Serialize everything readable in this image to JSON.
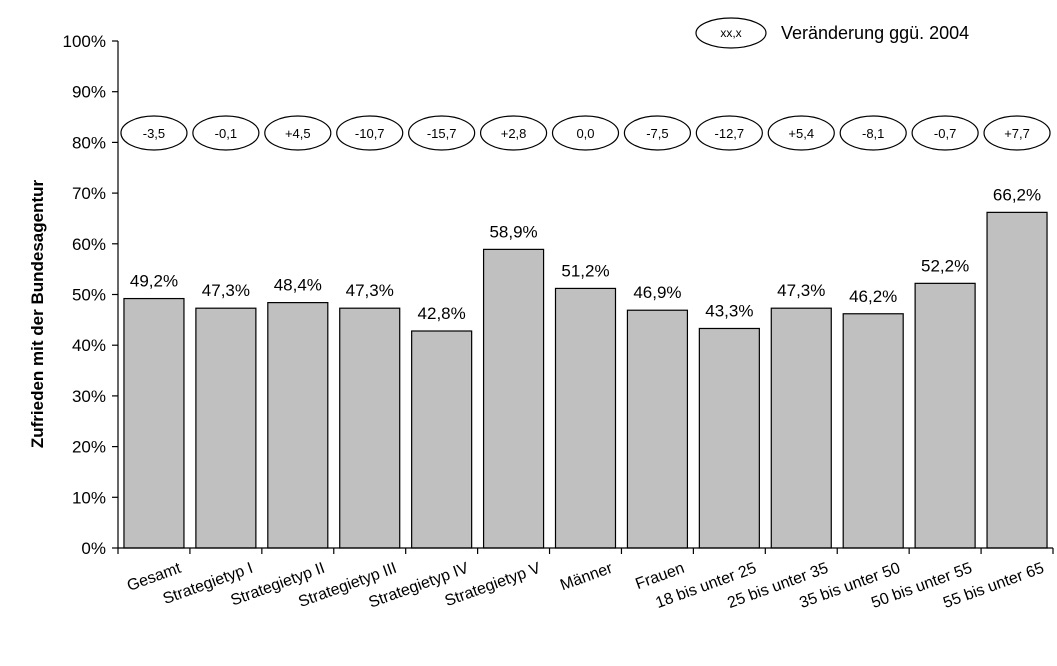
{
  "chart_data": {
    "type": "bar",
    "ylabel": "Zufrieden mit der Bundesagentur",
    "xlabel": "",
    "ylim": [
      0,
      100
    ],
    "y_ticks": [
      "0%",
      "10%",
      "20%",
      "30%",
      "40%",
      "50%",
      "60%",
      "70%",
      "80%",
      "90%",
      "100%"
    ],
    "categories": [
      "Gesamt",
      "Strategietyp I",
      "Strategietyp II",
      "Strategietyp III",
      "Strategietyp IV",
      "Strategietyp V",
      "Männer",
      "Frauen",
      "18 bis unter 25",
      "25 bis unter 35",
      "35 bis unter 50",
      "50 bis unter 55",
      "55 bis unter 65"
    ],
    "values": [
      49.2,
      47.3,
      48.4,
      47.3,
      42.8,
      58.9,
      51.2,
      46.9,
      43.3,
      47.3,
      46.2,
      52.2,
      66.2
    ],
    "value_labels": [
      "49,2%",
      "47,3%",
      "48,4%",
      "47,3%",
      "42,8%",
      "58,9%",
      "51,2%",
      "46,9%",
      "43,3%",
      "47,3%",
      "46,2%",
      "52,2%",
      "66,2%"
    ],
    "change_labels": [
      "-3,5",
      "-0,1",
      "+4,5",
      "-10,7",
      "-15,7",
      "+2,8",
      "0,0",
      "-7,5",
      "-12,7",
      "+5,4",
      "-8,1",
      "-0,7",
      "+7,7"
    ],
    "legend": {
      "key": "xx,x",
      "label": "Veränderung ggü. 2004",
      "position": "top-right"
    },
    "grid": false,
    "colors": {
      "bar_fill": "#c0c0c0",
      "bar_stroke": "#000000"
    }
  }
}
